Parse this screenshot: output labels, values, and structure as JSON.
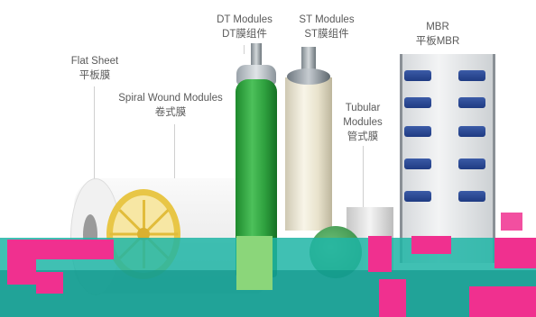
{
  "labels": {
    "flat_sheet": {
      "en": "Flat Sheet",
      "zh": "平板膜"
    },
    "spiral_wound": {
      "en": "Spiral Wound Modules",
      "zh": "卷式膜"
    },
    "dt": {
      "en": "DT Modules",
      "zh": "DT膜组件"
    },
    "st": {
      "en": "ST Modules",
      "zh": "ST膜组件"
    },
    "tubular": {
      "en_line1": "Tubular",
      "en_line2": "Modules",
      "zh": "管式膜"
    },
    "mbr": {
      "en": "MBR",
      "zh": "平板MBR"
    }
  },
  "colors": {
    "glitch_magenta": "#f0308f",
    "glitch_teal": "#1fb5a6",
    "glitch_dark_teal": "#0d8f86",
    "glitch_green": "#8bd67a",
    "dt_green": "#2fa13f",
    "mbr_blue": "#2a4a97",
    "spiral_yellow": "#e8c646"
  }
}
